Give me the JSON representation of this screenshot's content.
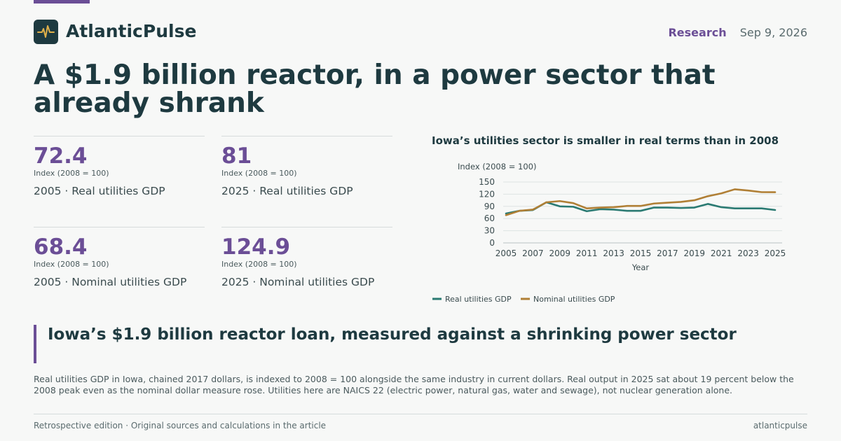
{
  "brand": {
    "name": "AtlanticPulse",
    "logo_icon": "pulse-icon",
    "accent": "#6b4e96",
    "dark": "#1e3a40",
    "logo_stroke": "#e0b04a"
  },
  "header": {
    "section": "Research",
    "date": "Sep 9, 2026"
  },
  "headline": "A $1.9 billion reactor, in a power sector that already shrank",
  "stats": [
    {
      "value": "72.4",
      "unit": "Index (2008 = 100)",
      "label": "2005 · Real utilities GDP"
    },
    {
      "value": "81",
      "unit": "Index (2008 = 100)",
      "label": "2025 · Real utilities GDP"
    },
    {
      "value": "68.4",
      "unit": "Index (2008 = 100)",
      "label": "2005 · Nominal utilities GDP"
    },
    {
      "value": "124.9",
      "unit": "Index (2008 = 100)",
      "label": "2025 · Nominal utilities GDP"
    }
  ],
  "chart_data": {
    "type": "line",
    "title": "Iowa’s utilities sector is smaller in real terms than in 2008",
    "ylabel": "Index (2008 = 100)",
    "xlabel": "Year",
    "ylim": [
      0,
      150
    ],
    "yticks": [
      0,
      30,
      60,
      90,
      120,
      150
    ],
    "xticks": [
      2005,
      2007,
      2009,
      2011,
      2013,
      2015,
      2017,
      2019,
      2021,
      2023,
      2025
    ],
    "grid": true,
    "legend": "bottom-left",
    "x": [
      2005,
      2006,
      2007,
      2008,
      2009,
      2010,
      2011,
      2012,
      2013,
      2014,
      2015,
      2016,
      2017,
      2018,
      2019,
      2020,
      2021,
      2022,
      2023,
      2024,
      2025
    ],
    "series": [
      {
        "name": "Real utilities GDP",
        "color": "#2a7a72",
        "values": [
          72.4,
          79,
          81,
          100,
          90,
          89,
          78,
          83,
          82,
          79,
          79,
          87,
          87,
          86,
          87,
          96,
          88,
          85,
          85,
          85,
          81
        ]
      },
      {
        "name": "Nominal utilities GDP",
        "color": "#b07f35",
        "values": [
          68.4,
          79,
          82,
          100,
          103,
          98,
          85,
          87,
          88,
          91,
          91,
          97,
          99,
          101,
          105,
          115,
          122,
          132,
          129,
          125,
          124.9
        ]
      }
    ]
  },
  "callout": "Iowa’s $1.9 billion reactor loan, measured against a shrinking power sector",
  "body": "Real utilities GDP in Iowa, chained 2017 dollars, is indexed to 2008 = 100 alongside the same industry in current dollars. Real output in 2025 sat about 19 percent below the 2008 peak even as the nominal dollar measure rose. Utilities here are NAICS 22 (electric power, natural gas, water and sewage), not nuclear generation alone.",
  "footer": {
    "left": "Retrospective edition · Original sources and calculations in the article",
    "right": "atlanticpulse"
  }
}
